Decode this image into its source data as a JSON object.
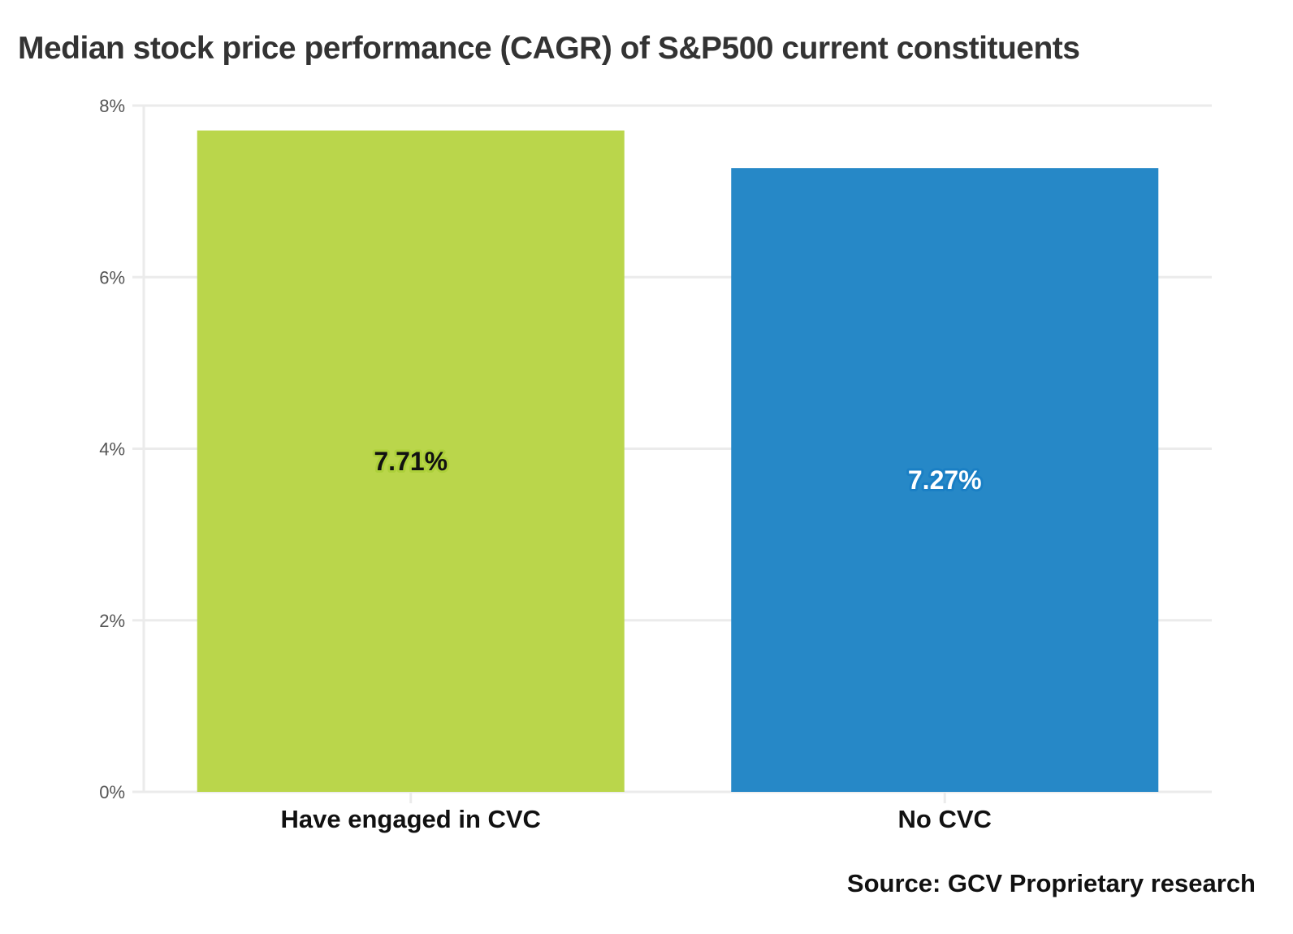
{
  "chart_data": {
    "type": "bar",
    "title": "Median stock price performance (CAGR) of S&P500 current constituents",
    "xlabel": "",
    "ylabel": "",
    "categories": [
      "Have engaged in CVC",
      "No CVC"
    ],
    "values": [
      7.71,
      7.27
    ],
    "value_labels": [
      "7.71%",
      "7.27%"
    ],
    "colors": [
      "#bad64b",
      "#2688c7"
    ],
    "label_colors": [
      "#111111",
      "#ffffff"
    ],
    "label_halo_colors": [
      "#add03a",
      "#1a7fc4"
    ],
    "ylim": [
      0,
      8
    ],
    "yticks": [
      0,
      2,
      4,
      6,
      8
    ],
    "ytick_labels": [
      "0%",
      "2%",
      "4%",
      "6%",
      "8%"
    ],
    "grid": true,
    "legend": "none",
    "annotation": "Source: GCV Proprietary research"
  }
}
